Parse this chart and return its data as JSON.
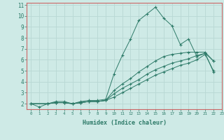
{
  "xlabel": "Humidex (Indice chaleur)",
  "background_color": "#ceeae6",
  "grid_color": "#b8d8d4",
  "line_color": "#2d7a68",
  "spine_color": "#cc6666",
  "xlim": [
    -0.5,
    23
  ],
  "ylim": [
    1.5,
    11.2
  ],
  "yticks": [
    2,
    3,
    4,
    5,
    6,
    7,
    8,
    9,
    10,
    11
  ],
  "xticks": [
    0,
    1,
    2,
    3,
    4,
    5,
    6,
    7,
    8,
    9,
    10,
    11,
    12,
    13,
    14,
    15,
    16,
    17,
    18,
    19,
    20,
    21,
    22,
    23
  ],
  "series": [
    {
      "x": [
        0,
        1,
        2,
        3,
        4,
        5,
        6,
        7,
        8,
        9,
        10,
        11,
        12,
        13,
        14,
        15,
        16,
        17,
        18,
        19,
        20,
        21,
        22
      ],
      "y": [
        2.0,
        1.7,
        2.0,
        2.2,
        2.2,
        2.0,
        2.2,
        2.3,
        2.3,
        2.4,
        4.7,
        6.4,
        7.9,
        9.6,
        10.2,
        10.8,
        9.8,
        9.1,
        7.4,
        7.9,
        6.3,
        6.6,
        4.9
      ]
    },
    {
      "x": [
        0,
        2,
        3,
        4,
        5,
        6,
        7,
        8,
        9,
        10,
        11,
        12,
        13,
        14,
        15,
        16,
        17,
        18,
        19,
        20,
        21,
        22
      ],
      "y": [
        2.0,
        2.0,
        2.1,
        2.1,
        2.0,
        2.1,
        2.2,
        2.2,
        2.3,
        3.2,
        3.8,
        4.3,
        4.9,
        5.4,
        5.9,
        6.3,
        6.5,
        6.6,
        6.7,
        6.7,
        6.7,
        5.9
      ]
    },
    {
      "x": [
        0,
        2,
        3,
        4,
        5,
        6,
        7,
        8,
        9,
        10,
        11,
        12,
        13,
        14,
        15,
        16,
        17,
        18,
        19,
        20,
        21,
        22
      ],
      "y": [
        2.0,
        2.0,
        2.1,
        2.1,
        2.0,
        2.1,
        2.2,
        2.2,
        2.3,
        2.9,
        3.4,
        3.8,
        4.2,
        4.7,
        5.1,
        5.4,
        5.7,
        5.9,
        6.1,
        6.4,
        6.6,
        5.9
      ]
    },
    {
      "x": [
        0,
        2,
        3,
        4,
        5,
        6,
        7,
        8,
        9,
        10,
        11,
        12,
        13,
        14,
        15,
        16,
        17,
        18,
        19,
        20,
        21,
        22
      ],
      "y": [
        2.0,
        2.0,
        2.1,
        2.1,
        2.0,
        2.1,
        2.2,
        2.2,
        2.3,
        2.6,
        3.0,
        3.4,
        3.8,
        4.2,
        4.6,
        4.9,
        5.2,
        5.5,
        5.7,
        6.0,
        6.5,
        5.0
      ]
    }
  ]
}
